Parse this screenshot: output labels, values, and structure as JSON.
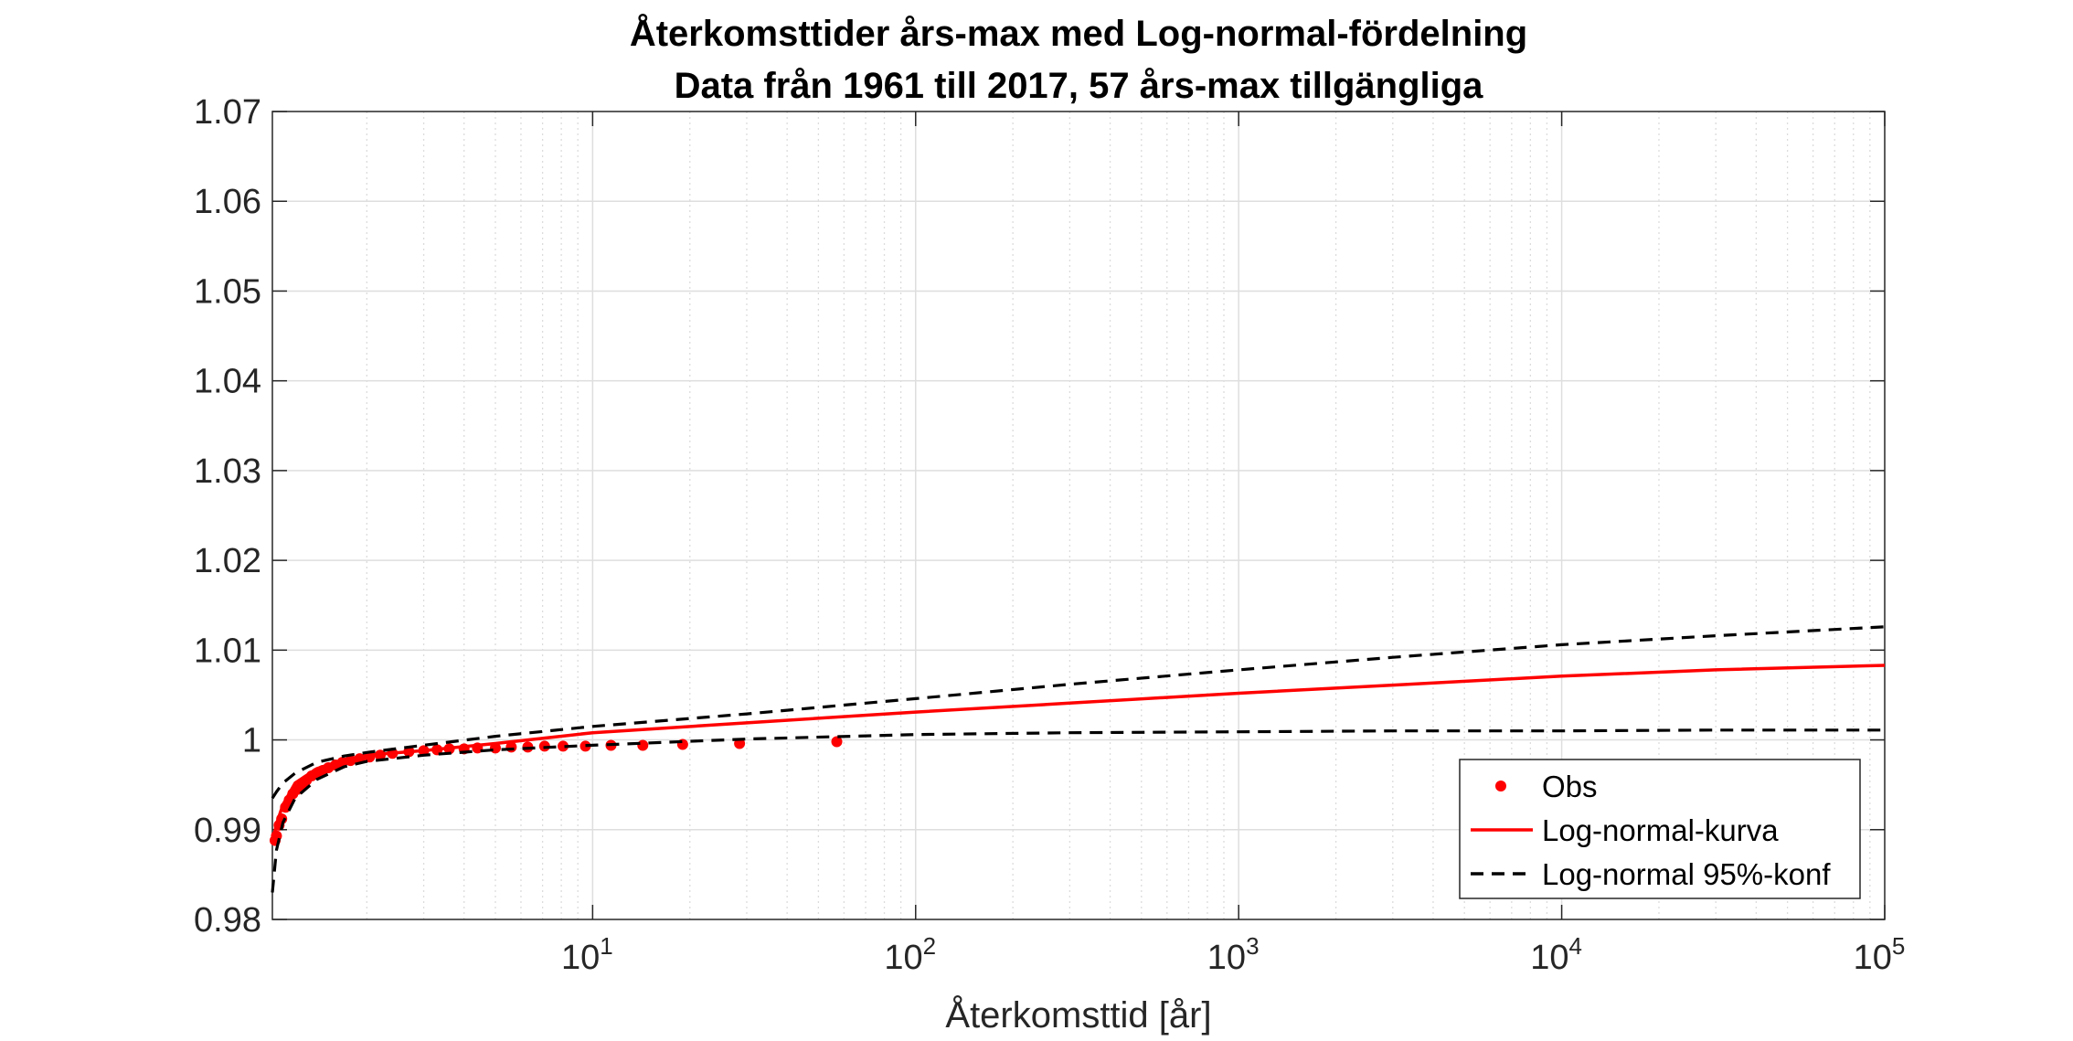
{
  "chart_data": {
    "type": "scatter",
    "title": [
      "Återkomsttider års-max med Log-normal-fördelning",
      "Data från 1961 till 2017, 57 års-max tillgängliga"
    ],
    "xlabel": "Återkomsttid [år]",
    "ylabel": "",
    "xscale": "log",
    "xlim": [
      1.02,
      100000
    ],
    "ylim": [
      0.98,
      1.07
    ],
    "grid": true,
    "legend_position": "bottom-right",
    "x_ticks": [
      {
        "base": "10",
        "exp": "1",
        "value": 10
      },
      {
        "base": "10",
        "exp": "2",
        "value": 100
      },
      {
        "base": "10",
        "exp": "3",
        "value": 1000
      },
      {
        "base": "10",
        "exp": "4",
        "value": 10000
      },
      {
        "base": "10",
        "exp": "5",
        "value": 100000
      }
    ],
    "y_ticks": [
      {
        "label": "0.98",
        "value": 0.98
      },
      {
        "label": "0.99",
        "value": 0.99
      },
      {
        "label": "1",
        "value": 1.0
      },
      {
        "label": "1.01",
        "value": 1.01
      },
      {
        "label": "1.02",
        "value": 1.02
      },
      {
        "label": "1.03",
        "value": 1.03
      },
      {
        "label": "1.04",
        "value": 1.04
      },
      {
        "label": "1.05",
        "value": 1.05
      },
      {
        "label": "1.06",
        "value": 1.06
      },
      {
        "label": "1.07",
        "value": 1.07
      }
    ],
    "series": [
      {
        "name": "Obs",
        "kind": "markers",
        "color": "#ff0000",
        "x": [
          1.04,
          1.05,
          1.07,
          1.09,
          1.12,
          1.15,
          1.18,
          1.22,
          1.26,
          1.3,
          1.35,
          1.4,
          1.46,
          1.52,
          1.6,
          1.68,
          1.78,
          1.9,
          2.04,
          2.2,
          2.4,
          2.7,
          3.0,
          3.3,
          3.6,
          4.0,
          4.4,
          5.0,
          5.6,
          6.3,
          7.1,
          8.1,
          9.5,
          11.4,
          14.3,
          19.0,
          28.5,
          57.0
        ],
        "y": [
          0.9888,
          0.9893,
          0.9905,
          0.9912,
          0.9925,
          0.9933,
          0.994,
          0.9945,
          0.995,
          0.9955,
          0.996,
          0.9963,
          0.9966,
          0.9969,
          0.9972,
          0.9975,
          0.9977,
          0.9979,
          0.9981,
          0.9983,
          0.9985,
          0.9987,
          0.9988,
          0.9989,
          0.999,
          0.999,
          0.9991,
          0.9991,
          0.9992,
          0.9992,
          0.9993,
          0.9993,
          0.9993,
          0.9994,
          0.9994,
          0.9995,
          0.9996,
          0.9998
        ]
      },
      {
        "name": "Log-normal-kurva",
        "kind": "line",
        "color": "#ff0000",
        "x": [
          1.02,
          1.05,
          1.1,
          1.2,
          1.4,
          1.7,
          2.0,
          3.0,
          5.0,
          10,
          30,
          100,
          300,
          1000,
          3000,
          10000,
          30000,
          100000
        ],
        "y": [
          0.9885,
          0.9906,
          0.9928,
          0.9952,
          0.9968,
          0.9978,
          0.9983,
          0.9988,
          0.9996,
          1.0008,
          1.0019,
          1.0031,
          1.0041,
          1.0052,
          1.0061,
          1.0071,
          1.0078,
          1.0083
        ]
      },
      {
        "name": "Log-normal 95%-konf",
        "kind": "line-dashed",
        "color": "#000000",
        "x": [
          1.02,
          1.05,
          1.1,
          1.2,
          1.4,
          1.7,
          2.0,
          3.0,
          5.0,
          10,
          30,
          100,
          300,
          1000,
          3000,
          10000,
          30000,
          100000
        ],
        "y": [
          0.9935,
          0.9942,
          0.9952,
          0.9963,
          0.9975,
          0.9982,
          0.9986,
          0.9994,
          1.0004,
          1.0015,
          1.0029,
          1.0046,
          1.0062,
          1.0078,
          1.0092,
          1.0106,
          1.0116,
          1.0126
        ]
      },
      {
        "name": "",
        "kind": "line-dashed",
        "color": "#000000",
        "x": [
          1.02,
          1.05,
          1.1,
          1.2,
          1.4,
          1.7,
          2.0,
          3.0,
          5.0,
          10,
          30,
          100,
          300,
          1000,
          3000,
          10000,
          30000,
          100000
        ],
        "y": [
          0.983,
          0.9877,
          0.9908,
          0.9935,
          0.9956,
          0.997,
          0.9976,
          0.9983,
          0.9989,
          0.9994,
          1.0001,
          1.0006,
          1.0008,
          1.0009,
          1.001,
          1.001,
          1.0011,
          1.0011
        ]
      }
    ]
  }
}
